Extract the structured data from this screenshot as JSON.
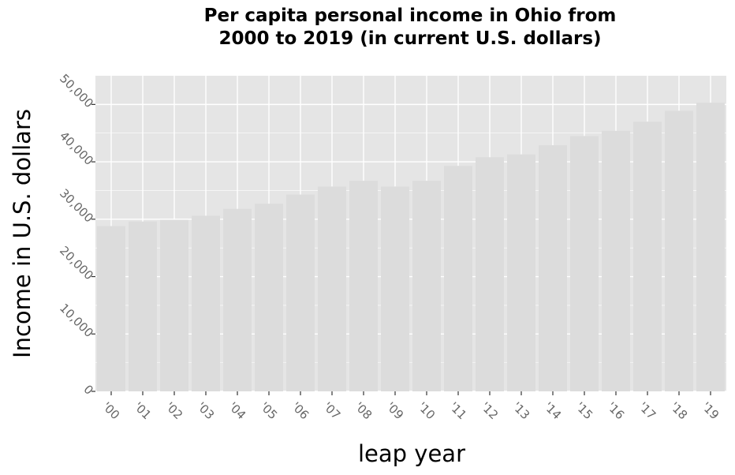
{
  "chart_data": {
    "type": "bar",
    "title_lines": [
      "Per capita personal income in Ohio from",
      "2000 to 2019 (in current U.S. dollars)"
    ],
    "xlabel": "leap year",
    "ylabel": "Income in U.S. dollars",
    "categories": [
      "'00",
      "'01",
      "'02",
      "'03",
      "'04",
      "'05",
      "'06",
      "'07",
      "'08",
      "'09",
      "'10",
      "'11",
      "'12",
      "'13",
      "'14",
      "'15",
      "'16",
      "'17",
      "'18",
      "'19"
    ],
    "values": [
      28800,
      29600,
      29900,
      30600,
      31800,
      32700,
      34300,
      35700,
      36700,
      35700,
      36700,
      39300,
      40800,
      41300,
      42900,
      44500,
      45400,
      47000,
      48900,
      50300
    ],
    "y_ticks": [
      "0",
      "10,000",
      "20,000",
      "30,000",
      "40,000",
      "50,000"
    ],
    "y_tick_values": [
      0,
      10000,
      20000,
      30000,
      40000,
      50000
    ],
    "ylim": [
      0,
      55000
    ],
    "grid": true,
    "legend": "none",
    "colors": {
      "panel_background": "#e5e5e5",
      "bar_fill": "#dcdcdc",
      "grid_line": "#ffffff",
      "tick_label": "#666666"
    }
  }
}
